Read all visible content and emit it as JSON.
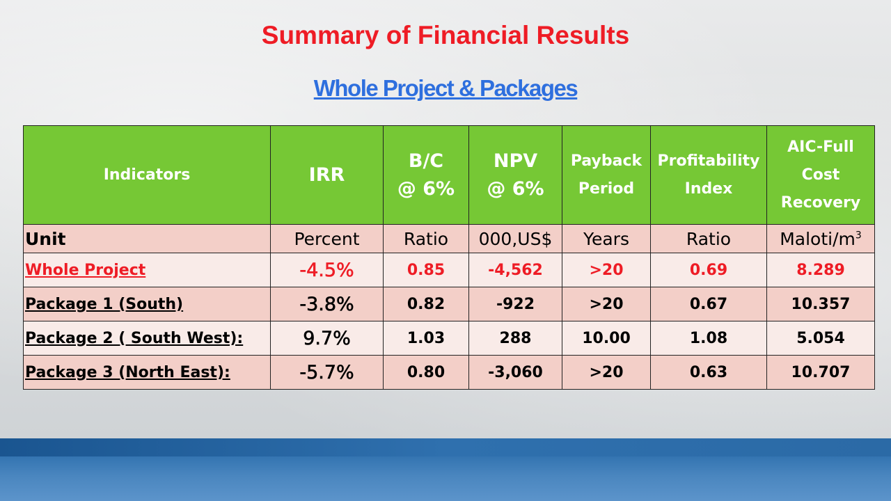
{
  "title": "Summary of Financial Results",
  "subtitle": "Whole Project & Packages",
  "table": {
    "headers": {
      "indicators": "Indicators",
      "irr": "IRR",
      "bc_line1": "B/C",
      "bc_line2": "@ 6%",
      "npv_line1": "NPV",
      "npv_line2": "@ 6%",
      "payback_line1": "Payback",
      "payback_line2": "Period",
      "pi_line1": "Profitability",
      "pi_line2": "Index",
      "aic_line1": "AIC-Full",
      "aic_line2": "Cost",
      "aic_line3": "Recovery"
    },
    "unit_row": {
      "label": "Unit",
      "irr": "Percent",
      "bc": "Ratio",
      "npv": "000,US$",
      "payback": "Years",
      "pi": "Ratio",
      "aic": "Maloti/m",
      "aic_sup": "3"
    },
    "rows": [
      {
        "label": "Whole Project",
        "irr": "-4.5%",
        "bc": "0.85",
        "npv": "-4,562",
        "payback": ">20",
        "pi": "0.69",
        "aic": "8.289"
      },
      {
        "label": "Package 1 (South)",
        "irr": "-3.8%",
        "bc": "0.82",
        "npv": "-922",
        "payback": ">20",
        "pi": "0.67",
        "aic": "10.357"
      },
      {
        "label": "Package 2 ( South West):",
        "irr": "9.7%",
        "bc": "1.03",
        "npv": "288",
        "payback": "10.00",
        "pi": "1.08",
        "aic": "5.054"
      },
      {
        "label": "Package 3  (North East):",
        "irr": "-5.7%",
        "bc": "0.80",
        "npv": "-3,060",
        "payback": ">20",
        "pi": "0.63",
        "aic": "10.707"
      }
    ]
  },
  "colors": {
    "title": "#ee1c25",
    "subtitle": "#2e6fde",
    "header_bg": "#76c835",
    "row_dark": "#f3cfc8",
    "row_light": "#f9ebe8",
    "footer_band": "#2d6fad"
  }
}
